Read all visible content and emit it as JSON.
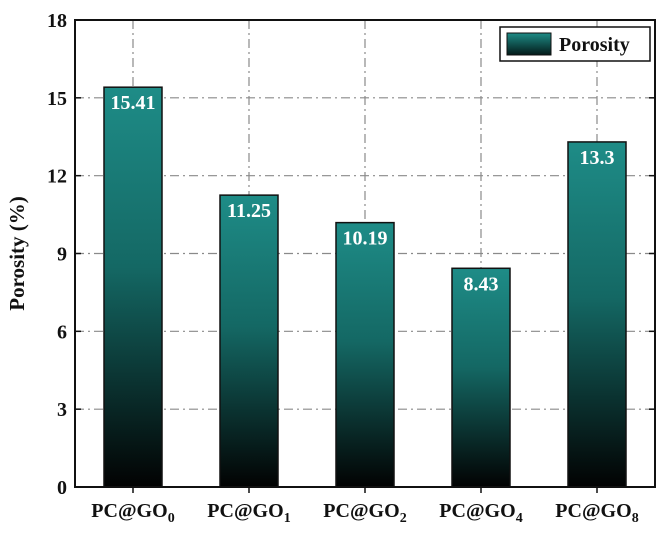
{
  "chart_data": {
    "type": "bar",
    "categories": [
      {
        "base": "PC@GO",
        "sub": "0"
      },
      {
        "base": "PC@GO",
        "sub": "1"
      },
      {
        "base": "PC@GO",
        "sub": "2"
      },
      {
        "base": "PC@GO",
        "sub": "4"
      },
      {
        "base": "PC@GO",
        "sub": "8"
      }
    ],
    "series": [
      {
        "name": "Porosity",
        "values": [
          15.41,
          11.25,
          10.19,
          8.43,
          13.3
        ]
      }
    ],
    "data_labels": [
      "15.41",
      "11.25",
      "10.19",
      "8.43",
      "13.3"
    ],
    "ylabel": "Porosity (%)",
    "xlabel": "",
    "ylim": [
      0,
      18
    ],
    "yticks": [
      0,
      3,
      6,
      9,
      12,
      15,
      18
    ],
    "grid": true,
    "legend": "top-right",
    "colors": {
      "bar_top": "#1e8c87",
      "bar_bottom": "#020202",
      "grid": "#8a8a8a",
      "axis": "#111111"
    }
  }
}
